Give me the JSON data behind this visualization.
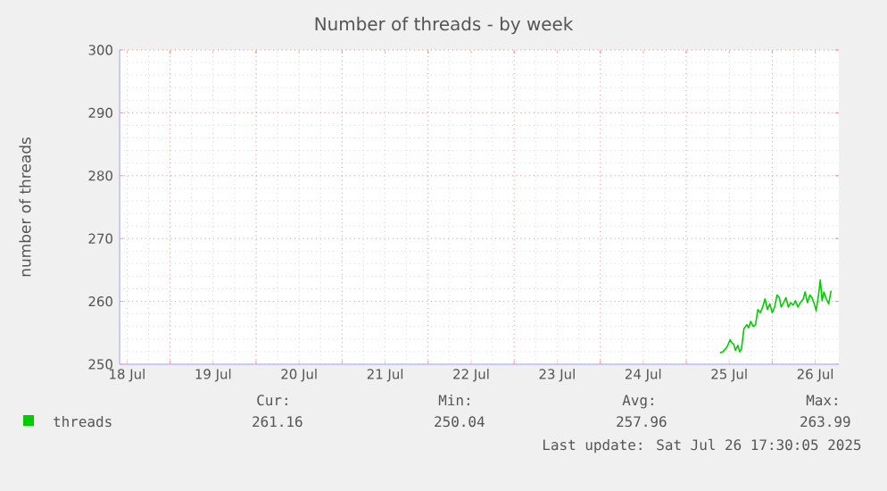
{
  "chart_data": {
    "type": "line",
    "title": "Number of threads - by week",
    "ylabel": "number of threads",
    "x": [
      "2025-07-25T09:25",
      "2025-07-25T10:15",
      "2025-07-25T11:05",
      "2025-07-25T11:35",
      "2025-07-25T12:15",
      "2025-07-25T12:45",
      "2025-07-25T13:15",
      "2025-07-25T13:45",
      "2025-07-25T14:25",
      "2025-07-25T14:55",
      "2025-07-25T15:25",
      "2025-07-25T16:05",
      "2025-07-25T16:55",
      "2025-07-25T17:25",
      "2025-07-25T18:00",
      "2025-07-25T18:45",
      "2025-07-25T19:20",
      "2025-07-25T20:00",
      "2025-07-25T20:40",
      "2025-07-25T21:20",
      "2025-07-25T22:00",
      "2025-07-25T22:40",
      "2025-07-25T23:20",
      "2025-07-26T00:00",
      "2025-07-26T00:40",
      "2025-07-26T01:20",
      "2025-07-26T02:00",
      "2025-07-26T02:30",
      "2025-07-26T03:10",
      "2025-07-26T03:50",
      "2025-07-26T04:30",
      "2025-07-26T05:10",
      "2025-07-26T05:50",
      "2025-07-26T06:30",
      "2025-07-26T07:10",
      "2025-07-26T07:50",
      "2025-07-26T08:40",
      "2025-07-26T09:10",
      "2025-07-26T09:50",
      "2025-07-26T10:30",
      "2025-07-26T11:05",
      "2025-07-26T11:45",
      "2025-07-26T12:15",
      "2025-07-26T12:55",
      "2025-07-26T13:25",
      "2025-07-26T13:55",
      "2025-07-26T14:25",
      "2025-07-26T15:05",
      "2025-07-26T15:45",
      "2025-07-26T16:25"
    ],
    "series": [
      {
        "name": "threads",
        "color": "#00cc00",
        "values": [
          251.8,
          252.0,
          252.5,
          253.0,
          253.9,
          253.4,
          253.2,
          252.2,
          253.0,
          252.0,
          252.4,
          255.6,
          256.3,
          255.8,
          256.8,
          256.0,
          256.3,
          258.7,
          258.2,
          259.1,
          260.4,
          258.7,
          259.6,
          258.2,
          259.1,
          261.0,
          260.6,
          259.1,
          259.8,
          260.6,
          259.1,
          259.8,
          259.4,
          260.1,
          259.1,
          259.8,
          260.4,
          261.5,
          259.8,
          261.0,
          260.6,
          259.6,
          258.5,
          261.0,
          263.4,
          260.1,
          261.5,
          260.4,
          259.6,
          261.7
        ]
      }
    ],
    "xlim": [
      "2025-07-18T09:55",
      "2025-07-26T18:35"
    ],
    "xticks": [
      {
        "value": "2025-07-18T12:00",
        "label": "18 Jul"
      },
      {
        "value": "2025-07-19T00:00",
        "label": null
      },
      {
        "value": "2025-07-19T12:00",
        "label": "19 Jul"
      },
      {
        "value": "2025-07-20T00:00",
        "label": null
      },
      {
        "value": "2025-07-20T12:00",
        "label": "20 Jul"
      },
      {
        "value": "2025-07-21T00:00",
        "label": null
      },
      {
        "value": "2025-07-21T12:00",
        "label": "21 Jul"
      },
      {
        "value": "2025-07-22T00:00",
        "label": null
      },
      {
        "value": "2025-07-22T12:00",
        "label": "22 Jul"
      },
      {
        "value": "2025-07-23T00:00",
        "label": null
      },
      {
        "value": "2025-07-23T12:00",
        "label": "23 Jul"
      },
      {
        "value": "2025-07-24T00:00",
        "label": null
      },
      {
        "value": "2025-07-24T12:00",
        "label": "24 Jul"
      },
      {
        "value": "2025-07-25T00:00",
        "label": null
      },
      {
        "value": "2025-07-25T12:00",
        "label": "25 Jul"
      },
      {
        "value": "2025-07-26T00:00",
        "label": null
      },
      {
        "value": "2025-07-26T12:00",
        "label": "26 Jul"
      }
    ],
    "ylim": [
      250,
      300
    ],
    "yticks": [
      250,
      260,
      270,
      280,
      290,
      300
    ],
    "grid": true,
    "legend": "bottom left",
    "marker": "none",
    "line_style": "solid",
    "annotations": [
      "Cur:",
      "Min:",
      "Avg:",
      "Max:",
      "261.16",
      "250.04",
      "257.96",
      "263.99",
      "Last update: Sat Jul 26 17:30:05 2025"
    ]
  }
}
